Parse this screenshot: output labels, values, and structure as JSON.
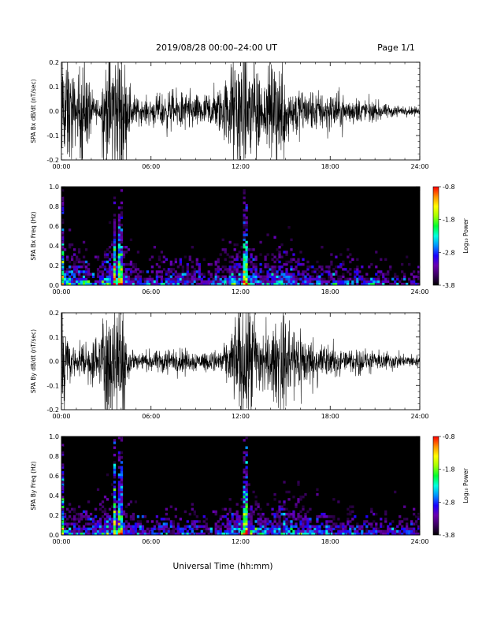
{
  "header": {
    "title": "2019/08/28  00:00–24:00 UT",
    "page": "Page 1/1"
  },
  "xlabel": "Universal Time (hh:mm)",
  "colorbar": {
    "label": "Log₁₀ Power",
    "ticks": [
      "-0.8",
      "-1.8",
      "-2.8",
      "-3.8"
    ],
    "range": [
      -3.8,
      -0.8
    ],
    "colors": [
      "#000000",
      "#3a0060",
      "#6a00b0",
      "#1a00ff",
      "#0090ff",
      "#00ffe0",
      "#00ff30",
      "#a0ff00",
      "#ffff00",
      "#ff9000",
      "#ff0000"
    ]
  },
  "chart_data": [
    {
      "type": "line",
      "ylabel": "SPA Bx dB/dt (nT/sec)",
      "xlim": [
        "00:00",
        "24:00"
      ],
      "ylim": [
        -0.2,
        0.2
      ],
      "x_ticks": [
        "00:00",
        "06:00",
        "12:00",
        "18:00",
        "24:00"
      ],
      "y_ticks": [
        "-0.2",
        "-0.1",
        "0.0",
        "0.1",
        "0.2"
      ],
      "series": [
        {
          "x_hours": [
            0,
            0.5,
            1,
            1.5,
            2,
            2.5,
            3,
            3.5,
            4,
            4.5,
            5,
            5.5,
            6,
            7,
            8,
            9,
            10,
            11,
            11.5,
            12,
            12.5,
            13,
            13.5,
            14,
            14.5,
            15,
            15.5,
            16,
            16.5,
            17,
            18,
            19,
            20,
            21,
            22,
            23,
            24
          ],
          "amplitude": [
            0.2,
            0.2,
            0.07,
            0.2,
            0.06,
            0.04,
            0.2,
            0.2,
            0.2,
            0.08,
            0.04,
            0.035,
            0.04,
            0.06,
            0.06,
            0.05,
            0.06,
            0.1,
            0.2,
            0.2,
            0.2,
            0.2,
            0.08,
            0.14,
            0.17,
            0.12,
            0.09,
            0.07,
            0.07,
            0.06,
            0.06,
            0.05,
            0.04,
            0.03,
            0.02,
            0.015,
            0.012
          ]
        }
      ]
    },
    {
      "type": "heatmap",
      "ylabel": "SPA Bx Freq (Hz)",
      "xlim": [
        "00:00",
        "24:00"
      ],
      "ylim": [
        0.0,
        1.0
      ],
      "x_ticks": [
        "00:00",
        "06:00",
        "12:00",
        "18:00",
        "24:00"
      ],
      "y_ticks": [
        "0.0",
        "0.2",
        "0.4",
        "0.6",
        "0.8",
        "1.0"
      ],
      "zlim": [
        -3.8,
        -0.8
      ],
      "broadband_events_hours": [
        0.1,
        3.6,
        3.9,
        4.0,
        12.3
      ]
    },
    {
      "type": "line",
      "ylabel": "SPA By dB/dt (nT/sec)",
      "xlim": [
        "00:00",
        "24:00"
      ],
      "ylim": [
        -0.2,
        0.2
      ],
      "x_ticks": [
        "00:00",
        "06:00",
        "12:00",
        "18:00",
        "24:00"
      ],
      "y_ticks": [
        "-0.2",
        "-0.1",
        "0.0",
        "0.1",
        "0.2"
      ],
      "series": [
        {
          "x_hours": [
            0,
            0.5,
            1,
            1.5,
            2,
            2.5,
            3,
            3.5,
            4,
            4.5,
            5,
            5.5,
            6,
            7,
            8,
            9,
            10,
            11,
            11.5,
            12,
            12.5,
            13,
            13.5,
            14,
            14.5,
            15,
            15.5,
            16,
            16.5,
            17,
            18,
            19,
            20,
            21,
            22,
            23,
            24
          ],
          "amplitude": [
            0.2,
            0.06,
            0.05,
            0.06,
            0.08,
            0.08,
            0.2,
            0.2,
            0.2,
            0.06,
            0.04,
            0.03,
            0.03,
            0.04,
            0.04,
            0.03,
            0.03,
            0.05,
            0.1,
            0.18,
            0.2,
            0.15,
            0.1,
            0.08,
            0.15,
            0.16,
            0.12,
            0.1,
            0.08,
            0.07,
            0.05,
            0.04,
            0.04,
            0.03,
            0.03,
            0.02,
            0.02
          ]
        }
      ]
    },
    {
      "type": "heatmap",
      "ylabel": "SPA By Freq (Hz)",
      "xlim": [
        "00:00",
        "24:00"
      ],
      "ylim": [
        0.0,
        1.0
      ],
      "x_ticks": [
        "00:00",
        "06:00",
        "12:00",
        "18:00",
        "24:00"
      ],
      "y_ticks": [
        "0.0",
        "0.2",
        "0.4",
        "0.6",
        "0.8",
        "1.0"
      ],
      "zlim": [
        -3.8,
        -0.8
      ],
      "broadband_events_hours": [
        0.1,
        3.6,
        3.9,
        4.0,
        12.3
      ]
    }
  ]
}
